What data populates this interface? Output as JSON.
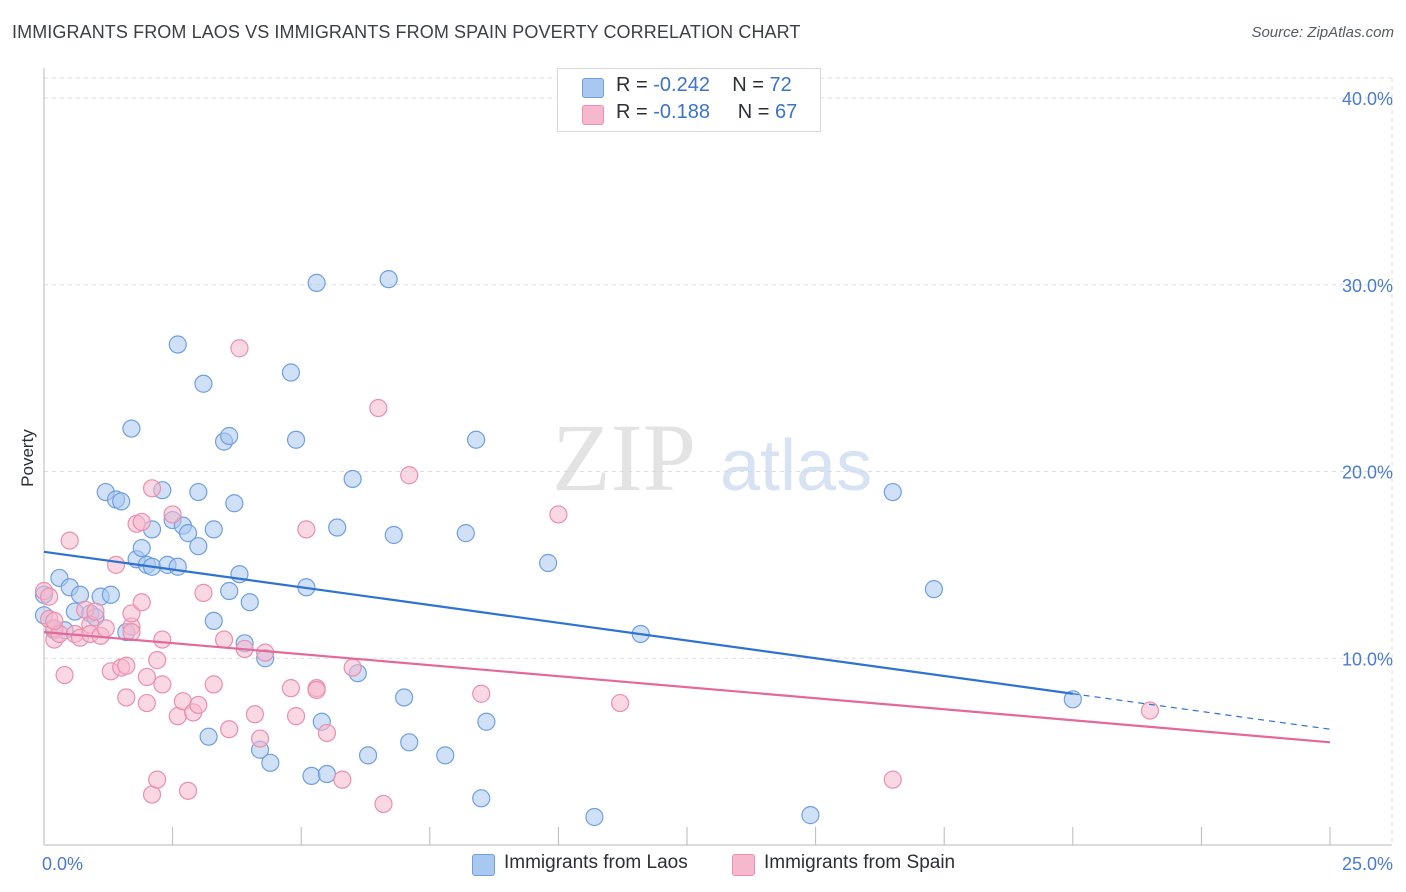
{
  "header": {
    "title": "IMMIGRANTS FROM LAOS VS IMMIGRANTS FROM SPAIN POVERTY CORRELATION CHART",
    "source": "Source: ZipAtlas.com"
  },
  "watermark": {
    "zip": "ZIP",
    "atlas": "atlas"
  },
  "legend_top": [
    {
      "r_label": "R =",
      "r_value": "-0.242",
      "n_label": "N =",
      "n_value": "72"
    },
    {
      "r_label": "R =",
      "r_value": "-0.188",
      "n_label": "N =",
      "n_value": "67"
    }
  ],
  "legend_bottom": [
    {
      "label": "Immigrants from Laos"
    },
    {
      "label": "Immigrants from Spain"
    }
  ],
  "colors": {
    "laos_fill": "#a9c8f0",
    "laos_stroke": "#6f9fe0",
    "laos_line": "#2e72d2",
    "spain_fill": "#f6b8cc",
    "spain_stroke": "#ea8fad",
    "spain_line": "#e2699a",
    "tick_text": "#4a7bd0",
    "grid": "#dedede"
  },
  "chart_data": {
    "type": "scatter",
    "title": "IMMIGRANTS FROM LAOS VS IMMIGRANTS FROM SPAIN POVERTY CORRELATION CHART",
    "xlabel": "",
    "ylabel": "Poverty",
    "xlim": [
      0,
      25
    ],
    "ylim": [
      0,
      40
    ],
    "x_tick_labels": [
      "0.0%",
      "25.0%"
    ],
    "y_ticks": [
      10,
      20,
      30,
      40
    ],
    "y_tick_labels": [
      "10.0%",
      "20.0%",
      "30.0%",
      "40.0%"
    ],
    "grid": true,
    "legend_position": "top-center",
    "series": [
      {
        "name": "Immigrants from Laos",
        "r": -0.242,
        "n": 72,
        "trend": {
          "x0": 0,
          "y0": 15.7,
          "x1": 20,
          "y1": 8.1,
          "dashed_to_x": 25,
          "dashed_to_y": 6.2
        },
        "points": [
          [
            0.0,
            13.4
          ],
          [
            0.0,
            12.3
          ],
          [
            0.2,
            11.5
          ],
          [
            0.3,
            14.3
          ],
          [
            0.4,
            11.5
          ],
          [
            0.5,
            13.8
          ],
          [
            0.6,
            12.5
          ],
          [
            0.7,
            13.4
          ],
          [
            0.9,
            12.4
          ],
          [
            1.0,
            12.2
          ],
          [
            1.1,
            13.3
          ],
          [
            1.3,
            13.4
          ],
          [
            1.2,
            18.9
          ],
          [
            1.4,
            18.5
          ],
          [
            1.5,
            18.4
          ],
          [
            1.6,
            11.4
          ],
          [
            1.7,
            22.3
          ],
          [
            1.8,
            15.3
          ],
          [
            1.9,
            15.9
          ],
          [
            2.0,
            15.0
          ],
          [
            2.1,
            14.9
          ],
          [
            2.1,
            16.9
          ],
          [
            2.3,
            19.0
          ],
          [
            2.4,
            15.0
          ],
          [
            2.5,
            17.4
          ],
          [
            2.6,
            14.9
          ],
          [
            2.6,
            26.8
          ],
          [
            2.7,
            17.1
          ],
          [
            2.8,
            16.7
          ],
          [
            3.0,
            18.9
          ],
          [
            3.0,
            16.0
          ],
          [
            3.1,
            24.7
          ],
          [
            3.2,
            5.8
          ],
          [
            3.3,
            16.9
          ],
          [
            3.3,
            12.0
          ],
          [
            3.5,
            21.6
          ],
          [
            3.6,
            13.6
          ],
          [
            3.6,
            21.9
          ],
          [
            3.7,
            18.3
          ],
          [
            3.8,
            14.5
          ],
          [
            3.9,
            10.8
          ],
          [
            4.0,
            13.0
          ],
          [
            4.2,
            5.1
          ],
          [
            4.3,
            10.0
          ],
          [
            4.4,
            4.4
          ],
          [
            4.8,
            25.3
          ],
          [
            4.9,
            21.7
          ],
          [
            5.1,
            13.8
          ],
          [
            5.2,
            3.7
          ],
          [
            5.3,
            30.1
          ],
          [
            5.4,
            6.6
          ],
          [
            5.5,
            3.8
          ],
          [
            5.7,
            17.0
          ],
          [
            6.0,
            19.6
          ],
          [
            6.1,
            9.2
          ],
          [
            6.3,
            4.8
          ],
          [
            6.7,
            30.3
          ],
          [
            6.8,
            16.6
          ],
          [
            7.0,
            7.9
          ],
          [
            7.1,
            5.5
          ],
          [
            7.8,
            4.8
          ],
          [
            8.2,
            16.7
          ],
          [
            8.4,
            21.7
          ],
          [
            8.5,
            2.5
          ],
          [
            8.6,
            6.6
          ],
          [
            9.8,
            15.1
          ],
          [
            10.7,
            1.5
          ],
          [
            11.6,
            11.3
          ],
          [
            14.9,
            1.6
          ],
          [
            16.5,
            18.9
          ],
          [
            17.3,
            13.7
          ],
          [
            20.0,
            7.8
          ]
        ]
      },
      {
        "name": "Immigrants from Spain",
        "r": -0.188,
        "n": 67,
        "trend": {
          "x0": 0,
          "y0": 11.4,
          "x1": 25,
          "y1": 5.5
        },
        "points": [
          [
            0.0,
            13.6
          ],
          [
            0.1,
            12.1
          ],
          [
            0.2,
            11.0
          ],
          [
            0.2,
            11.6
          ],
          [
            0.3,
            11.3
          ],
          [
            0.4,
            9.1
          ],
          [
            0.5,
            16.3
          ],
          [
            0.6,
            11.3
          ],
          [
            0.7,
            11.1
          ],
          [
            0.8,
            12.6
          ],
          [
            0.9,
            11.8
          ],
          [
            0.9,
            11.3
          ],
          [
            1.0,
            12.5
          ],
          [
            1.1,
            11.2
          ],
          [
            1.2,
            11.6
          ],
          [
            1.3,
            9.3
          ],
          [
            1.4,
            15.0
          ],
          [
            1.5,
            9.5
          ],
          [
            1.6,
            9.6
          ],
          [
            1.7,
            11.7
          ],
          [
            1.7,
            11.4
          ],
          [
            1.6,
            7.9
          ],
          [
            1.7,
            12.4
          ],
          [
            1.8,
            17.2
          ],
          [
            1.9,
            17.3
          ],
          [
            1.9,
            13.0
          ],
          [
            2.0,
            9.0
          ],
          [
            2.0,
            7.6
          ],
          [
            2.1,
            19.1
          ],
          [
            2.1,
            2.7
          ],
          [
            2.2,
            9.9
          ],
          [
            2.2,
            3.5
          ],
          [
            2.3,
            11.0
          ],
          [
            2.3,
            8.6
          ],
          [
            2.5,
            17.7
          ],
          [
            2.6,
            6.9
          ],
          [
            2.7,
            7.7
          ],
          [
            2.8,
            2.9
          ],
          [
            2.9,
            7.1
          ],
          [
            3.0,
            7.5
          ],
          [
            3.1,
            13.5
          ],
          [
            3.3,
            8.6
          ],
          [
            3.5,
            11.0
          ],
          [
            3.6,
            6.2
          ],
          [
            3.8,
            26.6
          ],
          [
            3.9,
            10.5
          ],
          [
            4.1,
            7.0
          ],
          [
            4.2,
            5.7
          ],
          [
            4.3,
            10.3
          ],
          [
            4.8,
            8.4
          ],
          [
            4.9,
            6.9
          ],
          [
            5.1,
            16.9
          ],
          [
            5.3,
            8.4
          ],
          [
            5.3,
            8.3
          ],
          [
            5.5,
            6.0
          ],
          [
            5.8,
            3.5
          ],
          [
            6.0,
            9.5
          ],
          [
            6.5,
            23.4
          ],
          [
            6.6,
            2.2
          ],
          [
            7.1,
            19.8
          ],
          [
            8.5,
            8.1
          ],
          [
            10.0,
            17.7
          ],
          [
            11.2,
            7.6
          ],
          [
            16.5,
            3.5
          ],
          [
            21.5,
            7.2
          ],
          [
            0.1,
            13.3
          ],
          [
            0.2,
            12.0
          ]
        ]
      }
    ]
  }
}
